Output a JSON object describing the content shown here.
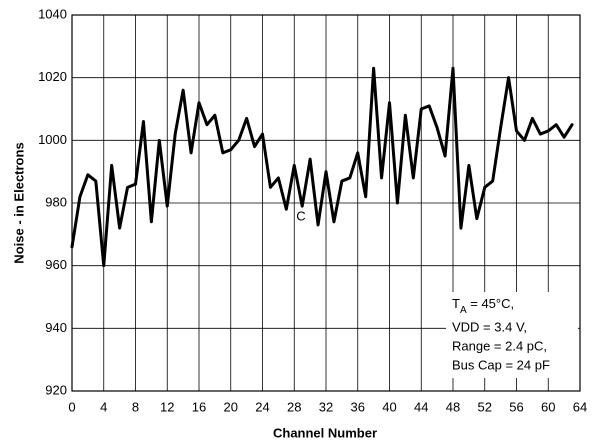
{
  "chart_data": {
    "type": "line",
    "y_label": "Noise - in Electrons",
    "x_label": "Channel Number",
    "x": [
      0,
      1,
      2,
      3,
      4,
      5,
      6,
      7,
      8,
      9,
      10,
      11,
      12,
      13,
      14,
      15,
      16,
      17,
      18,
      19,
      20,
      21,
      22,
      23,
      24,
      25,
      26,
      27,
      28,
      29,
      30,
      31,
      32,
      33,
      34,
      35,
      36,
      37,
      38,
      39,
      40,
      41,
      42,
      43,
      44,
      45,
      46,
      47,
      48,
      49,
      50,
      51,
      52,
      53,
      54,
      55,
      56,
      57,
      58,
      59,
      60,
      61,
      62,
      63
    ],
    "series": [
      {
        "color": "#000000",
        "values": [
          966,
          982,
          989,
          987,
          960,
          992,
          972,
          985,
          986,
          1006,
          974,
          1000,
          979,
          1002,
          1016,
          996,
          1012,
          1005,
          1008,
          996,
          997,
          1000,
          1007,
          998,
          1002,
          985,
          988,
          978,
          992,
          979,
          994,
          973,
          990,
          974,
          987,
          988,
          996,
          982,
          1023,
          988,
          1012,
          980,
          1008,
          988,
          1010,
          1011,
          1004,
          995,
          1023,
          972,
          992,
          975,
          985,
          987,
          1004,
          1020,
          1003,
          1000,
          1007,
          1002,
          1003,
          1005,
          1001,
          1005
        ]
      }
    ],
    "xlim": [
      0,
      64
    ],
    "xticks": [
      0,
      4,
      8,
      12,
      16,
      20,
      24,
      28,
      32,
      36,
      40,
      44,
      48,
      52,
      56,
      60,
      64
    ],
    "ylim": [
      920,
      1040
    ],
    "yticks": [
      920,
      940,
      960,
      980,
      1000,
      1020,
      1040
    ],
    "grid": true,
    "curve_label": "C",
    "conditions": {
      "temp_symbol": "T",
      "temp_subscript": "A",
      "temp_text": " = 45°C,",
      "lines": [
        "VDD = 3.4 V,",
        "Range = 2.4 pC,",
        "Bus Cap = 24 pF"
      ]
    }
  }
}
